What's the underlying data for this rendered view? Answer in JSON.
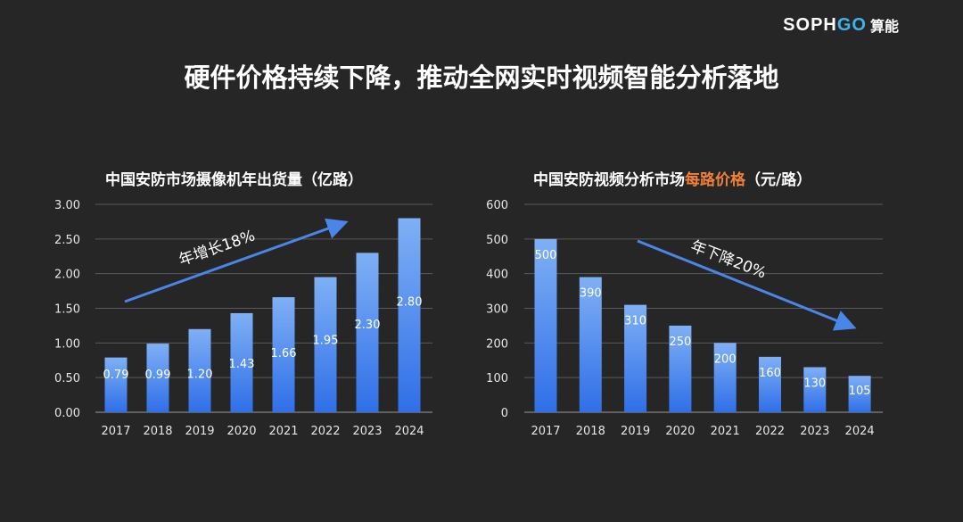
{
  "logo": {
    "word_main": "SOPH",
    "word_accent": "GO",
    "cn": "算能"
  },
  "page_title": "硬件价格持续下降，推动全网实时视频智能分析落地",
  "colors": {
    "bar_top": "#7fb0f5",
    "bar_bottom": "#2f6fe8",
    "arrow": "#4a86e8",
    "accent": "#f0803a"
  },
  "chart_data": [
    {
      "type": "bar",
      "title": "中国安防市场摄像机年出货量（亿路）",
      "categories": [
        "2017",
        "2018",
        "2019",
        "2020",
        "2021",
        "2022",
        "2023",
        "2024"
      ],
      "values": [
        0.79,
        0.99,
        1.2,
        1.43,
        1.66,
        1.95,
        2.3,
        2.8
      ],
      "value_labels": [
        "0.79",
        "0.99",
        "1.20",
        "1.43",
        "1.66",
        "1.95",
        "2.30",
        "2.80"
      ],
      "y_ticks": [
        "0.00",
        "0.50",
        "1.00",
        "1.50",
        "2.00",
        "2.50",
        "3.00"
      ],
      "ylim": [
        0,
        3
      ],
      "grid": true,
      "annotation": "年增长18%",
      "trend": "up"
    },
    {
      "type": "bar",
      "title_parts": [
        "中国安防视频分析市场",
        "每路价格",
        "（元/路）"
      ],
      "categories": [
        "2017",
        "2018",
        "2019",
        "2020",
        "2021",
        "2022",
        "2023",
        "2024"
      ],
      "values": [
        500,
        390,
        310,
        250,
        200,
        160,
        130,
        105
      ],
      "value_labels": [
        "500",
        "390",
        "310",
        "250",
        "200",
        "160",
        "130",
        "105"
      ],
      "y_ticks": [
        "0",
        "100",
        "200",
        "300",
        "400",
        "500",
        "600"
      ],
      "ylim": [
        0,
        600
      ],
      "grid": true,
      "annotation": "年下降20%",
      "trend": "down"
    }
  ]
}
